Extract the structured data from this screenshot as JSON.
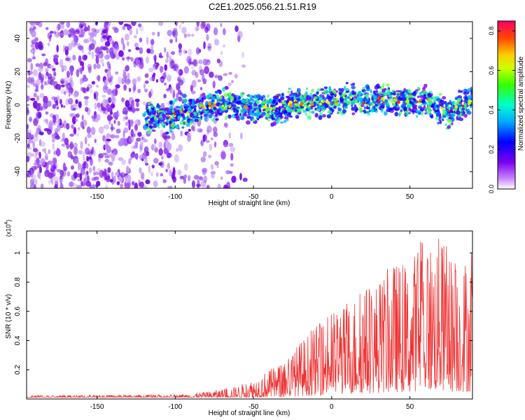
{
  "title": "C2E1.2025.056.21.51.R19",
  "chart_data": [
    {
      "type": "heatmap",
      "xlabel": "Height of straight line (km)",
      "ylabel": "Frequency (Hz)",
      "xlim": [
        -195,
        90
      ],
      "ylim": [
        -50,
        50
      ],
      "x_ticks": [
        -150,
        -100,
        -50,
        0,
        50
      ],
      "y_ticks": [
        -40,
        -20,
        0,
        20,
        40
      ],
      "colorbar": {
        "label": "Normalized spectral amplitude",
        "range": [
          0,
          0.85
        ],
        "ticks": [
          "0.0",
          "0.2",
          "0.4",
          "0.6",
          "0.8"
        ]
      },
      "ridge": [
        {
          "x": -195,
          "y": -5
        },
        {
          "x": -150,
          "y": -7
        },
        {
          "x": -115,
          "y": -8
        },
        {
          "x": -105,
          "y": -8
        },
        {
          "x": -95,
          "y": -4
        },
        {
          "x": -80,
          "y": -1
        },
        {
          "x": -70,
          "y": 1
        },
        {
          "x": -60,
          "y": -1
        },
        {
          "x": -45,
          "y": -1
        },
        {
          "x": -35,
          "y": -3
        },
        {
          "x": -25,
          "y": 1
        },
        {
          "x": -10,
          "y": 1
        },
        {
          "x": 0,
          "y": 2
        },
        {
          "x": 10,
          "y": 4
        },
        {
          "x": 20,
          "y": 2
        },
        {
          "x": 35,
          "y": 3
        },
        {
          "x": 50,
          "y": 2
        },
        {
          "x": 60,
          "y": 2
        },
        {
          "x": 75,
          "y": -5
        },
        {
          "x": 90,
          "y": 3
        }
      ]
    },
    {
      "type": "line",
      "xlabel": "Height of straight line (km)",
      "ylabel": "SNR (10 * v/v)",
      "y_scale_note": "(x10",
      "y_scale_exp": "4",
      "y_scale_close": ")",
      "xlim": [
        -195,
        90
      ],
      "ylim": [
        0,
        1.15
      ],
      "x_ticks": [
        -150,
        -100,
        -50,
        0,
        50
      ],
      "y_ticks": [
        0.2,
        0.4,
        0.6,
        0.8,
        1
      ],
      "series": [
        {
          "color": "#ee3333",
          "envelope": [
            {
              "x": -195,
              "y": 0.025
            },
            {
              "x": -100,
              "y": 0.03
            },
            {
              "x": -80,
              "y": 0.05
            },
            {
              "x": -60,
              "y": 0.09
            },
            {
              "x": -50,
              "y": 0.14
            },
            {
              "x": -40,
              "y": 0.2
            },
            {
              "x": -30,
              "y": 0.26
            },
            {
              "x": -20,
              "y": 0.4
            },
            {
              "x": -10,
              "y": 0.5
            },
            {
              "x": 0,
              "y": 0.6
            },
            {
              "x": 10,
              "y": 0.66
            },
            {
              "x": 20,
              "y": 0.78
            },
            {
              "x": 30,
              "y": 0.82
            },
            {
              "x": 40,
              "y": 0.95
            },
            {
              "x": 50,
              "y": 0.9
            },
            {
              "x": 55,
              "y": 1.1
            },
            {
              "x": 70,
              "y": 1.12
            },
            {
              "x": 80,
              "y": 0.95
            },
            {
              "x": 90,
              "y": 1.02
            }
          ]
        }
      ]
    }
  ]
}
